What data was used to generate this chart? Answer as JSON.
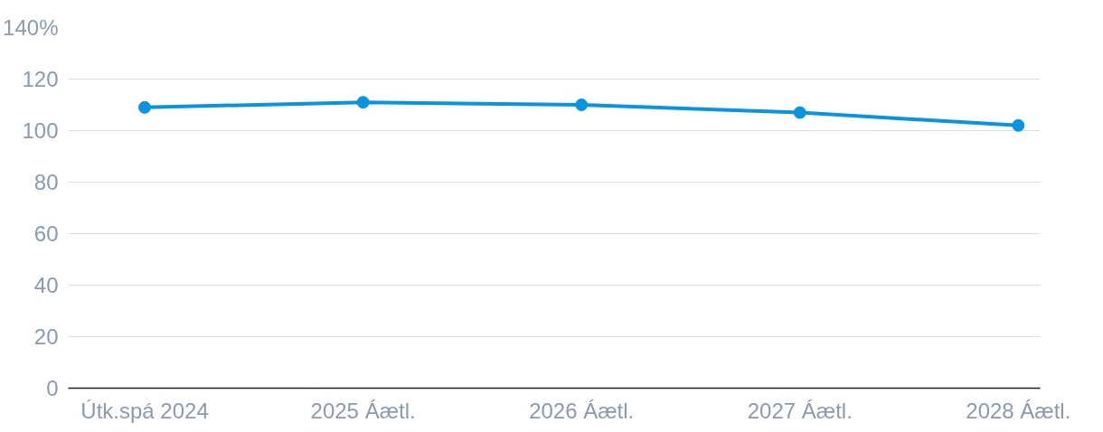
{
  "chart_data": {
    "type": "line",
    "categories": [
      "Útk.spá 2024",
      "2025 Áætl.",
      "2026 Áætl.",
      "2027 Áætl.",
      "2028 Áætl."
    ],
    "series": [
      {
        "color": "#0a94e0",
        "values": [
          109,
          111,
          110,
          107,
          102
        ]
      }
    ],
    "ylim": [
      0,
      140
    ],
    "yticks": [
      0,
      20,
      40,
      60,
      80,
      100,
      120,
      {
        "value": 140,
        "label": "140%"
      }
    ],
    "grid": "y",
    "marker": "circle",
    "line_style": "solid"
  }
}
